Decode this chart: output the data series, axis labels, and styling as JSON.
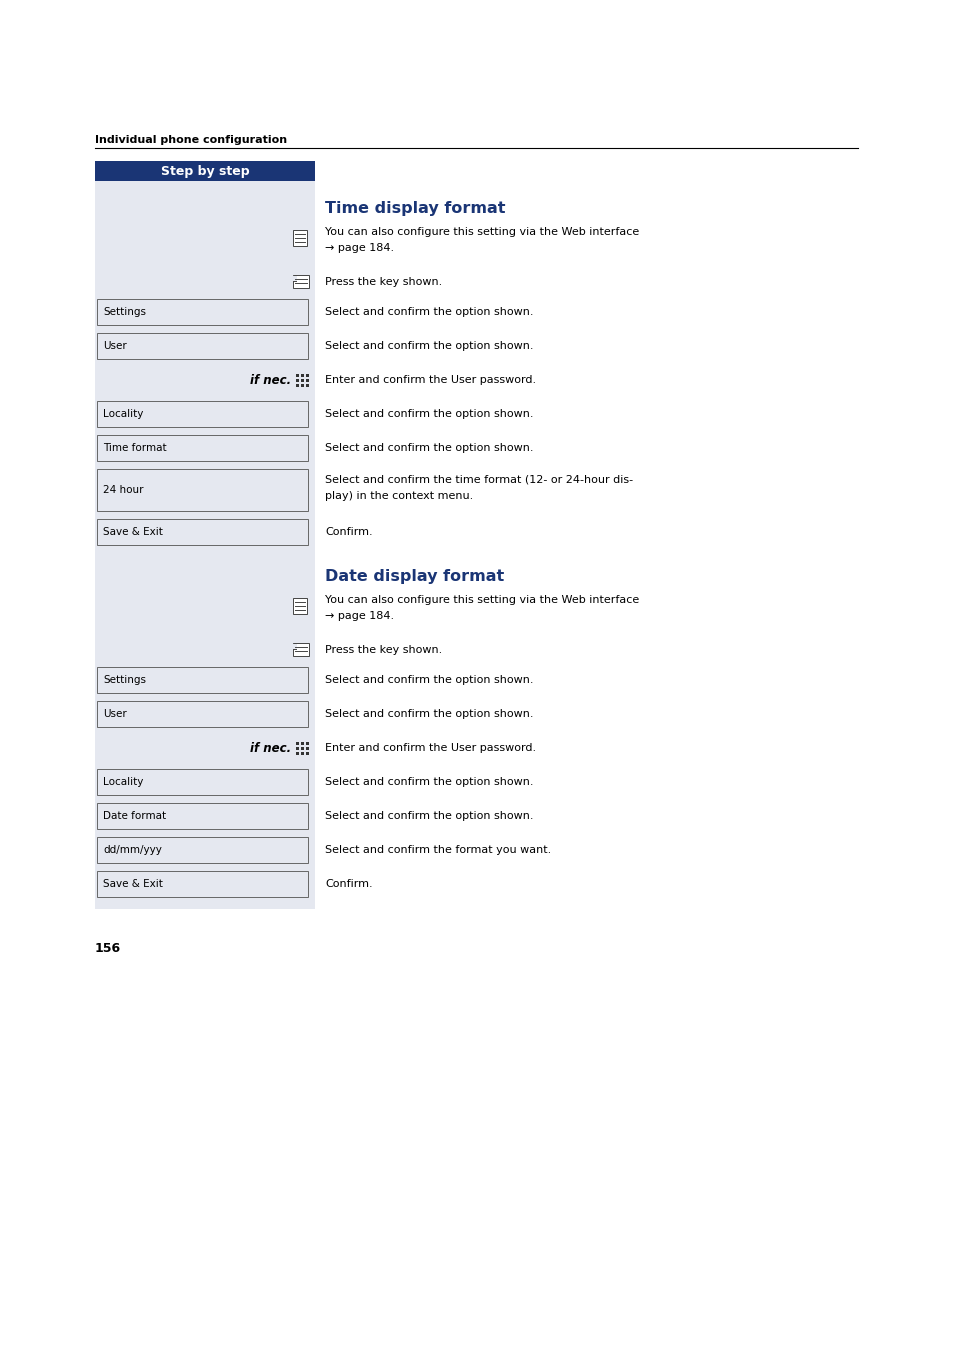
{
  "page_bg": "#ffffff",
  "header_text": "Individual phone configuration",
  "left_col_bg": "#e5e8f0",
  "left_col_header_bg": "#1a3575",
  "left_col_header_text": "Step by step",
  "left_col_header_text_color": "#ffffff",
  "title_color": "#1a3575",
  "body_text_color": "#000000",
  "page_number": "156",
  "rows": [
    {
      "section": 1,
      "type": "title",
      "text": "Time display format"
    },
    {
      "section": 1,
      "type": "icon_info",
      "right_text": "You can also configure this setting via the Web interface\n→ page 184."
    },
    {
      "section": 1,
      "type": "icon_key",
      "right_text": "Press the key shown."
    },
    {
      "section": 1,
      "type": "box",
      "box_label": "Settings",
      "right_text": "Select and confirm the option shown."
    },
    {
      "section": 1,
      "type": "box",
      "box_label": "User",
      "right_text": "Select and confirm the option shown."
    },
    {
      "section": 1,
      "type": "ifnec",
      "right_text": "Enter and confirm the User password."
    },
    {
      "section": 1,
      "type": "box",
      "box_label": "Locality",
      "right_text": "Select and confirm the option shown."
    },
    {
      "section": 1,
      "type": "box",
      "box_label": "Time format",
      "right_text": "Select and confirm the option shown."
    },
    {
      "section": 1,
      "type": "box_multi",
      "box_label": "24 hour",
      "right_text": "Select and confirm the time format (12- or 24-hour dis-\nplay) in the context menu."
    },
    {
      "section": 1,
      "type": "box",
      "box_label": "Save & Exit",
      "right_text": "Confirm."
    },
    {
      "section": 2,
      "type": "title",
      "text": "Date display format"
    },
    {
      "section": 2,
      "type": "icon_info",
      "right_text": "You can also configure this setting via the Web interface\n→ page 184."
    },
    {
      "section": 2,
      "type": "icon_key",
      "right_text": "Press the key shown."
    },
    {
      "section": 2,
      "type": "box",
      "box_label": "Settings",
      "right_text": "Select and confirm the option shown."
    },
    {
      "section": 2,
      "type": "box",
      "box_label": "User",
      "right_text": "Select and confirm the option shown."
    },
    {
      "section": 2,
      "type": "ifnec",
      "right_text": "Enter and confirm the User password."
    },
    {
      "section": 2,
      "type": "box",
      "box_label": "Locality",
      "right_text": "Select and confirm the option shown."
    },
    {
      "section": 2,
      "type": "box",
      "box_label": "Date format",
      "right_text": "Select and confirm the option shown."
    },
    {
      "section": 2,
      "type": "box",
      "box_label": "dd/mm/yyy",
      "right_text": "Select and confirm the format you want."
    },
    {
      "section": 2,
      "type": "box",
      "box_label": "Save & Exit",
      "right_text": "Confirm."
    }
  ]
}
